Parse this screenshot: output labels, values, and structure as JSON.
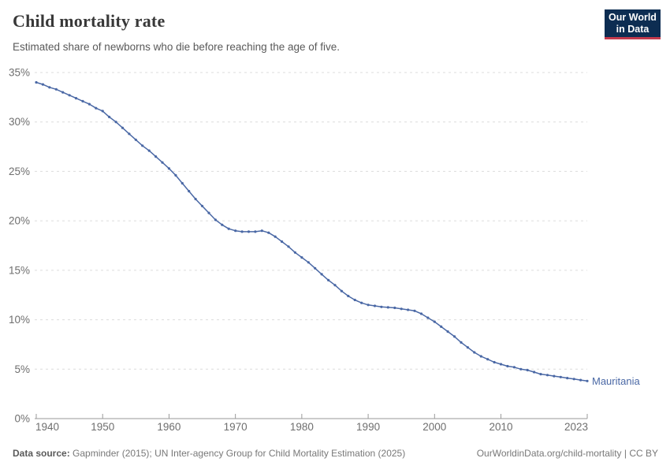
{
  "header": {
    "title": "Child mortality rate",
    "subtitle": "Estimated share of newborns who die before reaching the age of five."
  },
  "logo": {
    "line1": "Our World",
    "line2": "in Data",
    "bg_color": "#0d2d52",
    "accent_color": "#c43a4d"
  },
  "footer": {
    "source_label": "Data source:",
    "source_text": " Gapminder (2015); UN Inter-agency Group for Child Mortality Estimation (2025)",
    "link_text": "OurWorldinData.org/child-mortality | CC BY"
  },
  "colors": {
    "line": "#4a68a5",
    "grid": "#dcdcdc",
    "axis": "#9a9a9a",
    "tick_text": "#6e6e6e"
  },
  "chart_data": {
    "type": "line",
    "title": "Child mortality rate",
    "subtitle": "Estimated share of newborns who die before reaching the age of five.",
    "entity_label": "Mauritania",
    "xlim": [
      1940,
      2023
    ],
    "ylim": [
      0,
      35
    ],
    "x_ticks": [
      1940,
      1950,
      1960,
      1970,
      1980,
      1990,
      2000,
      2010,
      2023
    ],
    "y_ticks": [
      0,
      5,
      10,
      15,
      20,
      25,
      30,
      35
    ],
    "y_suffix": "%",
    "grid": true,
    "legend_position": "end-of-line",
    "series": [
      {
        "name": "Mauritania",
        "color": "#4a68a5",
        "points": [
          [
            1940,
            34.0
          ],
          [
            1941,
            33.8
          ],
          [
            1942,
            33.5
          ],
          [
            1943,
            33.3
          ],
          [
            1944,
            33.0
          ],
          [
            1945,
            32.7
          ],
          [
            1946,
            32.4
          ],
          [
            1947,
            32.1
          ],
          [
            1948,
            31.8
          ],
          [
            1949,
            31.4
          ],
          [
            1950,
            31.1
          ],
          [
            1951,
            30.5
          ],
          [
            1952,
            30.0
          ],
          [
            1953,
            29.4
          ],
          [
            1954,
            28.8
          ],
          [
            1955,
            28.2
          ],
          [
            1956,
            27.6
          ],
          [
            1957,
            27.1
          ],
          [
            1958,
            26.5
          ],
          [
            1959,
            25.9
          ],
          [
            1960,
            25.3
          ],
          [
            1961,
            24.6
          ],
          [
            1962,
            23.8
          ],
          [
            1963,
            23.0
          ],
          [
            1964,
            22.2
          ],
          [
            1965,
            21.5
          ],
          [
            1966,
            20.8
          ],
          [
            1967,
            20.1
          ],
          [
            1968,
            19.6
          ],
          [
            1969,
            19.2
          ],
          [
            1970,
            19.0
          ],
          [
            1971,
            18.9
          ],
          [
            1972,
            18.9
          ],
          [
            1973,
            18.9
          ],
          [
            1974,
            19.0
          ],
          [
            1975,
            18.8
          ],
          [
            1976,
            18.4
          ],
          [
            1977,
            17.9
          ],
          [
            1978,
            17.4
          ],
          [
            1979,
            16.8
          ],
          [
            1980,
            16.3
          ],
          [
            1981,
            15.8
          ],
          [
            1982,
            15.2
          ],
          [
            1983,
            14.6
          ],
          [
            1984,
            14.0
          ],
          [
            1985,
            13.5
          ],
          [
            1986,
            12.9
          ],
          [
            1987,
            12.4
          ],
          [
            1988,
            12.0
          ],
          [
            1989,
            11.7
          ],
          [
            1990,
            11.5
          ],
          [
            1991,
            11.4
          ],
          [
            1992,
            11.3
          ],
          [
            1993,
            11.25
          ],
          [
            1994,
            11.2
          ],
          [
            1995,
            11.1
          ],
          [
            1996,
            11.0
          ],
          [
            1997,
            10.9
          ],
          [
            1998,
            10.6
          ],
          [
            1999,
            10.2
          ],
          [
            2000,
            9.8
          ],
          [
            2001,
            9.3
          ],
          [
            2002,
            8.8
          ],
          [
            2003,
            8.3
          ],
          [
            2004,
            7.7
          ],
          [
            2005,
            7.2
          ],
          [
            2006,
            6.7
          ],
          [
            2007,
            6.3
          ],
          [
            2008,
            6.0
          ],
          [
            2009,
            5.7
          ],
          [
            2010,
            5.5
          ],
          [
            2011,
            5.3
          ],
          [
            2012,
            5.2
          ],
          [
            2013,
            5.0
          ],
          [
            2014,
            4.9
          ],
          [
            2015,
            4.7
          ],
          [
            2016,
            4.5
          ],
          [
            2017,
            4.4
          ],
          [
            2018,
            4.3
          ],
          [
            2019,
            4.2
          ],
          [
            2020,
            4.1
          ],
          [
            2021,
            4.0
          ],
          [
            2022,
            3.9
          ],
          [
            2023,
            3.8
          ]
        ]
      }
    ]
  }
}
